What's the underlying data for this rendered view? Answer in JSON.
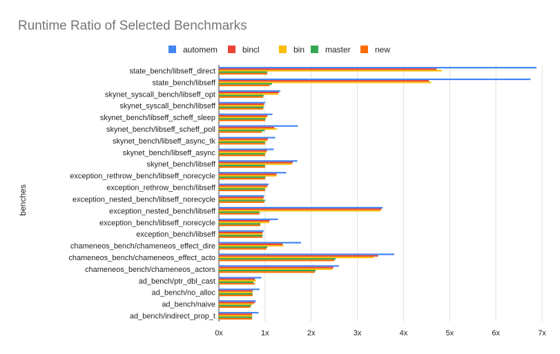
{
  "chart_data": {
    "type": "bar",
    "orientation": "horizontal",
    "title": "Runtime Ratio of Selected Benchmarks",
    "ylabel": "benches",
    "xlabel": "",
    "xlim": [
      0,
      7
    ],
    "x_ticks": [
      "0x",
      "1x",
      "2x",
      "3x",
      "4x",
      "5x",
      "6x",
      "7x"
    ],
    "grid": true,
    "legend_position": "top",
    "categories": [
      "state_bench/libseff_direct",
      "state_bench/libseff",
      "skynet_syscall_bench/libseff_opt",
      "skynet_syscall_bench/libseff",
      "skynet_bench/libseff_scheff_sleep",
      "skynet_bench/libseff_scheff_poll",
      "skynet_bench/libseff_async_tk",
      "skynet_bench/libseff_async",
      "skynet_bench/libseff",
      "exception_rethrow_bench/libseff_norecycle",
      "exception_rethrow_bench/libseff",
      "exception_nested_bench/libseff_norecycle",
      "exception_nested_bench/libseff",
      "exception_bench/libseff_norecycle",
      "exception_bench/libseff",
      "chameneos_bench/chameneos_effect_dire",
      "chameneos_bench/chameneos_effect_acto",
      "chameneos_bench/chameneos_actors",
      "ad_bench/ptr_dbl_cast",
      "ad_bench/no_alloc",
      "ad_bench/naive",
      "ad_bench/indirect_prop_t"
    ],
    "series": [
      {
        "name": "automem",
        "color": "#4285F4",
        "values": [
          6.88,
          6.75,
          1.33,
          1.0,
          1.16,
          1.71,
          1.22,
          1.19,
          1.7,
          1.46,
          1.08,
          0.98,
          3.55,
          1.28,
          0.97,
          1.78,
          3.8,
          2.6,
          0.92,
          0.88,
          0.8,
          0.86
        ]
      },
      {
        "name": "bincl",
        "color": "#EA4335",
        "values": [
          4.72,
          4.55,
          1.3,
          0.98,
          1.05,
          1.2,
          1.06,
          1.04,
          1.6,
          1.25,
          1.05,
          0.97,
          3.52,
          1.1,
          0.95,
          1.38,
          3.45,
          2.48,
          0.78,
          0.73,
          0.78,
          0.72
        ]
      },
      {
        "name": "bin",
        "color": "#FBBC04",
        "values": [
          4.83,
          4.6,
          1.28,
          0.98,
          1.04,
          1.26,
          1.05,
          1.03,
          1.58,
          1.25,
          1.04,
          0.96,
          3.5,
          1.09,
          0.94,
          1.4,
          3.35,
          2.46,
          0.8,
          0.73,
          0.74,
          0.72
        ]
      },
      {
        "name": "master",
        "color": "#34A853",
        "values": [
          1.05,
          1.15,
          0.97,
          0.97,
          1.01,
          0.99,
          1.0,
          1.0,
          1.0,
          1.01,
          1.0,
          1.0,
          0.88,
          0.9,
          0.95,
          1.05,
          2.53,
          2.1,
          0.75,
          0.73,
          0.7,
          0.72
        ]
      },
      {
        "name": "new",
        "color": "#FF6D01",
        "values": [
          1.05,
          1.1,
          0.96,
          0.96,
          1.0,
          0.93,
          1.0,
          1.0,
          1.0,
          1.0,
          1.0,
          0.98,
          0.88,
          0.9,
          0.94,
          1.03,
          2.5,
          2.08,
          0.78,
          0.73,
          0.68,
          0.72
        ]
      }
    ]
  }
}
